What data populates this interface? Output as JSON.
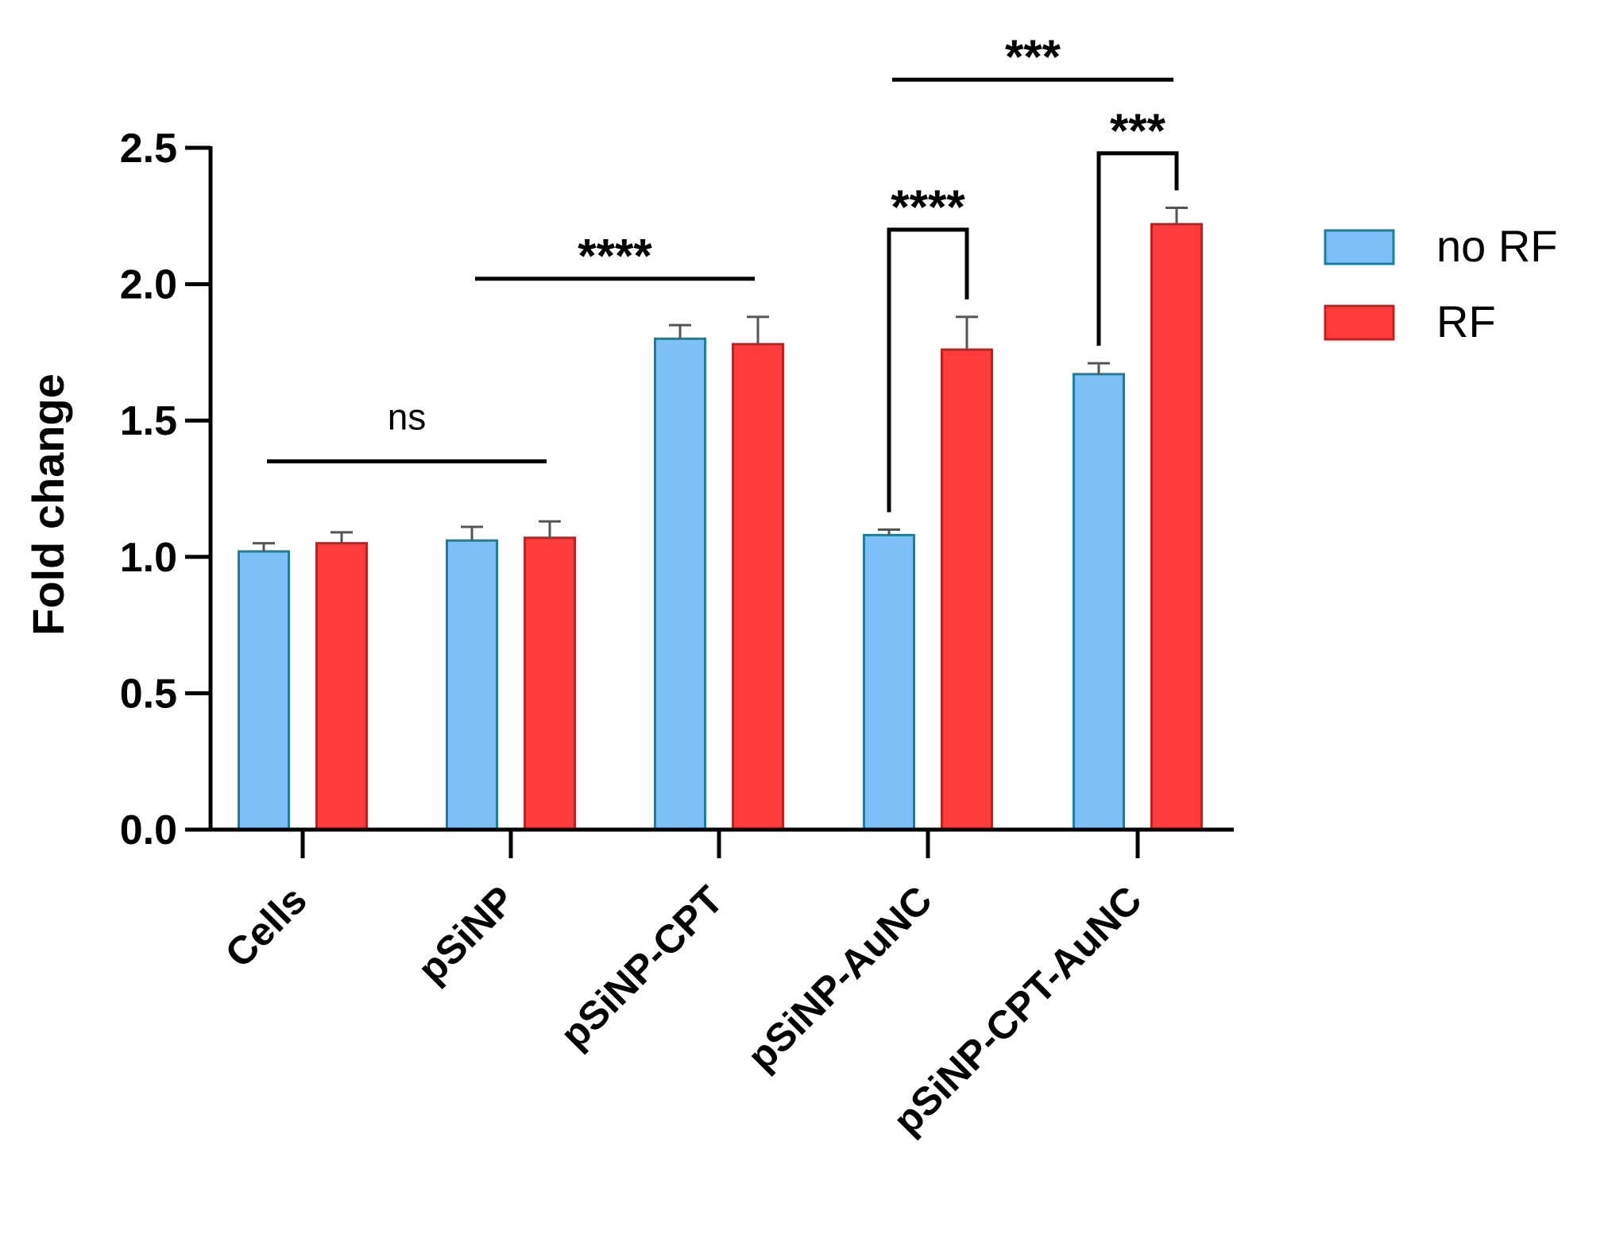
{
  "chart_data": {
    "type": "bar",
    "title": "",
    "xlabel": "",
    "ylabel": "Fold change",
    "ylim": [
      0,
      2.5
    ],
    "yticks": [
      "0.0",
      "0.5",
      "1.0",
      "1.5",
      "2.0",
      "2.5"
    ],
    "categories": [
      "Cells",
      "pSiNP",
      "pSiNP-CPT",
      "pSiNP-AuNC",
      "pSiNP-CPT-AuNC"
    ],
    "series": [
      {
        "name": "no RF",
        "color": "#7fbff7",
        "edge": "#1b7f99",
        "values": [
          1.02,
          1.06,
          1.8,
          1.08,
          1.67
        ],
        "errors": [
          0.03,
          0.05,
          0.05,
          0.02,
          0.04
        ]
      },
      {
        "name": "RF",
        "color": "#ff3c3c",
        "edge": "#c22020",
        "values": [
          1.05,
          1.07,
          1.78,
          1.76,
          2.22
        ],
        "errors": [
          0.04,
          0.06,
          0.1,
          0.12,
          0.06
        ]
      }
    ],
    "legend_position": "right",
    "annotations": [
      {
        "label": "ns",
        "type": "line",
        "from_group": 0,
        "to_group": 1,
        "y": 1.35
      },
      {
        "label": "****",
        "type": "line",
        "from_group": 1,
        "to_group": 2,
        "y": 2.02
      },
      {
        "label": "****",
        "type": "bracket",
        "group": 3,
        "y": 2.2
      },
      {
        "label": "***",
        "type": "bracket",
        "group": 4,
        "y": 2.48
      },
      {
        "label": "***",
        "type": "line",
        "from_group": 3,
        "to_group": 4,
        "y": 2.75
      }
    ]
  }
}
